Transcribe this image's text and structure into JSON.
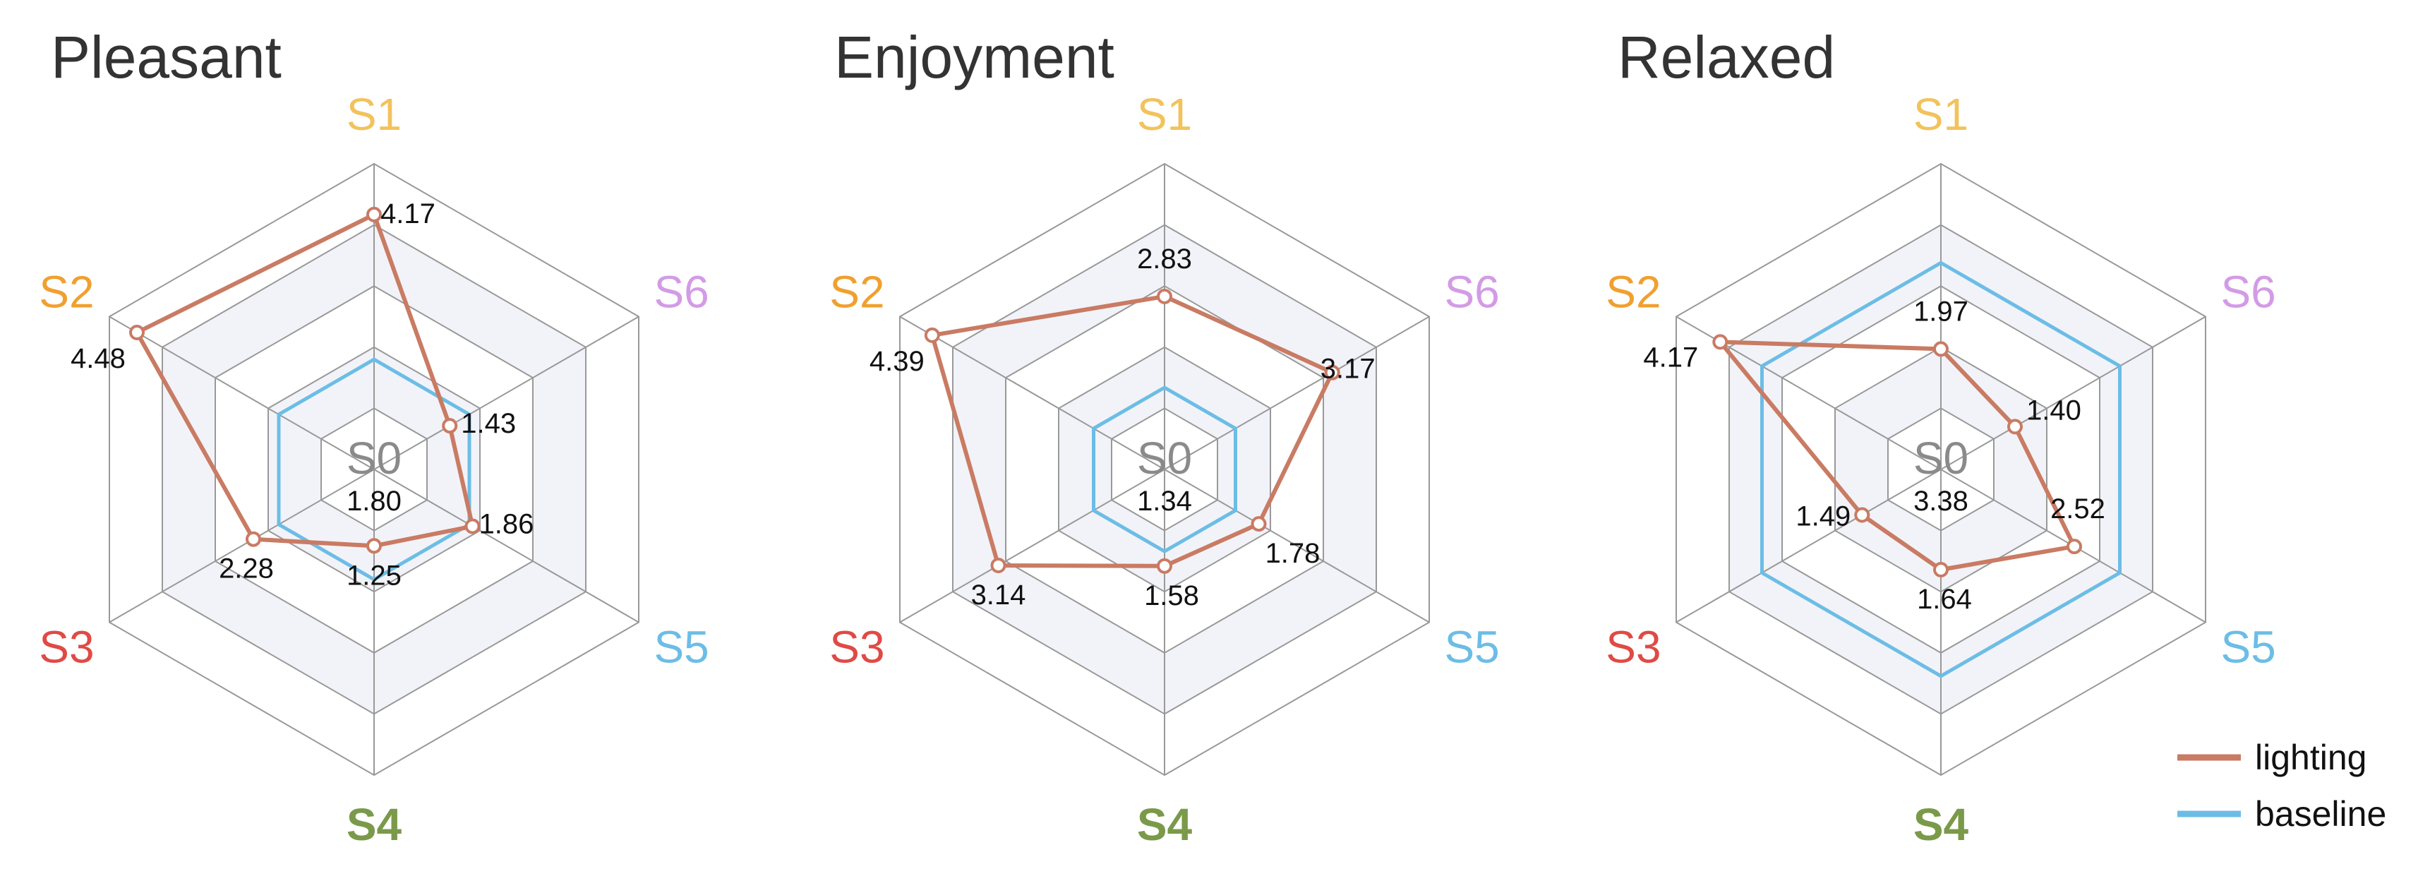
{
  "colors": {
    "lighting": "#c97b63",
    "baseline": "#6cbde6",
    "S1": "#f2c25c",
    "S2": "#f0a030",
    "S3": "#e04a45",
    "S4": "#7a9a4a",
    "S5": "#6cbde6",
    "S6": "#d39be6",
    "S0": "#8a8a8a",
    "grid": "#999999",
    "band": "#f2f3f8"
  },
  "legend": [
    {
      "key": "lighting",
      "label": "lighting"
    },
    {
      "key": "baseline",
      "label": "baseline"
    }
  ],
  "chart_data": [
    {
      "type": "radar",
      "title": "Pleasant",
      "axes": [
        "S1",
        "S6",
        "S5",
        "S4",
        "S3",
        "S2"
      ],
      "center_label": "S0",
      "rmax": 5,
      "rings": 5,
      "baseline_value": 1.8,
      "baseline_label": "1.80",
      "series": [
        {
          "key": "lighting",
          "values": [
            4.17,
            1.43,
            1.86,
            1.25,
            2.28,
            4.48
          ],
          "labels": [
            "4.17",
            "1.43",
            "1.86",
            "1.25",
            "2.28",
            "4.48"
          ]
        }
      ]
    },
    {
      "type": "radar",
      "title": "Enjoyment",
      "axes": [
        "S1",
        "S6",
        "S5",
        "S4",
        "S3",
        "S2"
      ],
      "center_label": "S0",
      "rmax": 5,
      "rings": 5,
      "baseline_value": 1.34,
      "baseline_label": "1.34",
      "series": [
        {
          "key": "lighting",
          "values": [
            2.83,
            3.17,
            1.78,
            1.58,
            3.14,
            4.39
          ],
          "labels": [
            "2.83",
            "3.17",
            "1.78",
            "1.58",
            "3.14",
            "4.39"
          ]
        }
      ]
    },
    {
      "type": "radar",
      "title": "Relaxed",
      "axes": [
        "S1",
        "S6",
        "S5",
        "S4",
        "S3",
        "S2"
      ],
      "center_label": "S0",
      "rmax": 5,
      "rings": 5,
      "baseline_value": 3.38,
      "baseline_label": "3.38",
      "series": [
        {
          "key": "lighting",
          "values": [
            1.97,
            1.4,
            2.52,
            1.64,
            1.49,
            4.17
          ],
          "labels": [
            "1.97",
            "1.40",
            "2.52",
            "1.64",
            "1.49",
            "4.17"
          ]
        }
      ]
    }
  ]
}
